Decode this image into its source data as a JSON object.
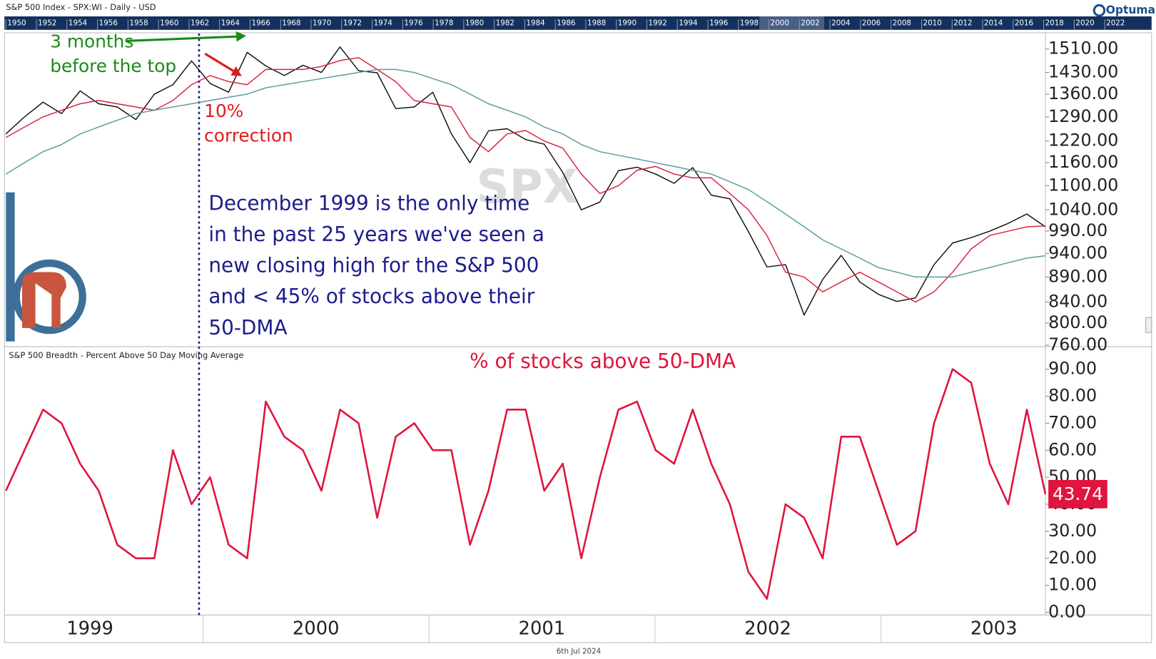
{
  "header": {
    "title": "S&P 500 Index - SPX:WI - Daily - USD",
    "brand": "Optuma"
  },
  "navigator": {
    "years": [
      1950,
      1952,
      1954,
      1956,
      1958,
      1960,
      1962,
      1964,
      1966,
      1968,
      1970,
      1972,
      1974,
      1976,
      1978,
      1980,
      1982,
      1984,
      1986,
      1988,
      1990,
      1992,
      1994,
      1996,
      1998,
      2000,
      2002,
      2004,
      2006,
      2008,
      2010,
      2012,
      2014,
      2016,
      2018,
      2020,
      2022
    ]
  },
  "footer": {
    "date": "6th Jul 2024"
  },
  "chart_data": [
    {
      "type": "line",
      "watermark": "SPX",
      "log_scale": true,
      "ylim": [
        760,
        1565
      ],
      "yticks": [
        {
          "value": 760,
          "label": "760.00"
        },
        {
          "value": 800,
          "label": "800.00"
        },
        {
          "value": 840,
          "label": "840.00"
        },
        {
          "value": 890,
          "label": "890.00"
        },
        {
          "value": 940,
          "label": "940.00"
        },
        {
          "value": 990,
          "label": "990.00"
        },
        {
          "value": 1040,
          "label": "1040.00"
        },
        {
          "value": 1100,
          "label": "1100.00"
        },
        {
          "value": 1160,
          "label": "1160.00"
        },
        {
          "value": 1220,
          "label": "1220.00"
        },
        {
          "value": 1290,
          "label": "1290.00"
        },
        {
          "value": 1360,
          "label": "1360.00"
        },
        {
          "value": 1430,
          "label": "1430.00"
        },
        {
          "value": 1510,
          "label": "1510.00"
        }
      ],
      "series": [
        {
          "color": "#111111",
          "values": [
            1240,
            1290,
            1335,
            1300,
            1370,
            1330,
            1320,
            1282,
            1360,
            1390,
            1469,
            1394,
            1366,
            1498,
            1452,
            1420,
            1454,
            1430,
            1517,
            1436,
            1429,
            1315,
            1320,
            1366,
            1240,
            1160,
            1249,
            1255,
            1224,
            1211,
            1134,
            1040,
            1059,
            1139,
            1148,
            1130,
            1106,
            1147,
            1076,
            1067,
            989,
            911,
            916,
            815,
            885,
            936,
            880,
            855,
            841,
            848,
            916,
            963,
            975,
            990,
            1008,
            1030,
            1000
          ]
        },
        {
          "color": "#d9223c",
          "values": [
            1230,
            1260,
            1290,
            1310,
            1330,
            1340,
            1330,
            1320,
            1310,
            1340,
            1390,
            1420,
            1400,
            1390,
            1440,
            1440,
            1440,
            1450,
            1470,
            1480,
            1440,
            1400,
            1340,
            1330,
            1320,
            1230,
            1190,
            1240,
            1250,
            1220,
            1200,
            1130,
            1080,
            1100,
            1140,
            1150,
            1130,
            1120,
            1120,
            1080,
            1040,
            980,
            900,
            890,
            860,
            880,
            900,
            880,
            860,
            840,
            860,
            900,
            950,
            980,
            990,
            1000,
            1002
          ]
        },
        {
          "color": "#5b9aa0",
          "values": [
            1130,
            1160,
            1190,
            1210,
            1240,
            1260,
            1280,
            1300,
            1310,
            1320,
            1330,
            1340,
            1350,
            1360,
            1380,
            1390,
            1400,
            1410,
            1420,
            1430,
            1440,
            1440,
            1430,
            1410,
            1390,
            1360,
            1330,
            1310,
            1290,
            1260,
            1240,
            1210,
            1190,
            1180,
            1170,
            1160,
            1150,
            1140,
            1130,
            1110,
            1090,
            1060,
            1030,
            1000,
            970,
            950,
            930,
            910,
            900,
            890,
            890,
            890,
            900,
            910,
            920,
            930,
            935
          ]
        }
      ],
      "annotations": [
        {
          "lines": [
            "3 months",
            "before the top"
          ],
          "color": "#1a8a1a"
        },
        {
          "lines": [
            "10%",
            "correction"
          ],
          "color": "#e01b1b"
        },
        {
          "lines": [
            "December 1999 is the only time",
            "in the past 25 years we've seen a",
            "new closing high for the S&P 500",
            "and < 45% of stocks above their",
            "50-DMA"
          ],
          "color": "#1c1c8c"
        }
      ]
    },
    {
      "type": "line",
      "title": "S&P 500 Breadth - Percent Above 50 Day Moving Average",
      "annotation": "% of stocks above 50-DMA",
      "ylim": [
        -1,
        97.5
      ],
      "yticks": [
        {
          "value": 0,
          "label": "0.00"
        },
        {
          "value": 10,
          "label": "10.00"
        },
        {
          "value": 20,
          "label": "20.00"
        },
        {
          "value": 30,
          "label": "30.00"
        },
        {
          "value": 40,
          "label": "40.00"
        },
        {
          "value": 50,
          "label": "50.00"
        },
        {
          "value": 60,
          "label": "60.00"
        },
        {
          "value": 70,
          "label": "70.00"
        },
        {
          "value": 80,
          "label": "80.00"
        },
        {
          "value": 90,
          "label": "90.00"
        }
      ],
      "x_labels": [
        "1999",
        "2000",
        "2001",
        "2002",
        "2003"
      ],
      "series": [
        {
          "color": "#e0143c",
          "values": [
            45,
            60,
            75,
            70,
            55,
            45,
            25,
            20,
            20,
            60,
            40,
            50,
            25,
            20,
            78,
            65,
            60,
            45,
            75,
            70,
            35,
            65,
            70,
            60,
            60,
            25,
            45,
            75,
            75,
            45,
            55,
            20,
            50,
            75,
            78,
            60,
            55,
            75,
            55,
            40,
            15,
            5,
            40,
            35,
            20,
            65,
            65,
            45,
            25,
            30,
            70,
            90,
            85,
            55,
            40,
            75,
            43.74
          ]
        }
      ]
    }
  ]
}
